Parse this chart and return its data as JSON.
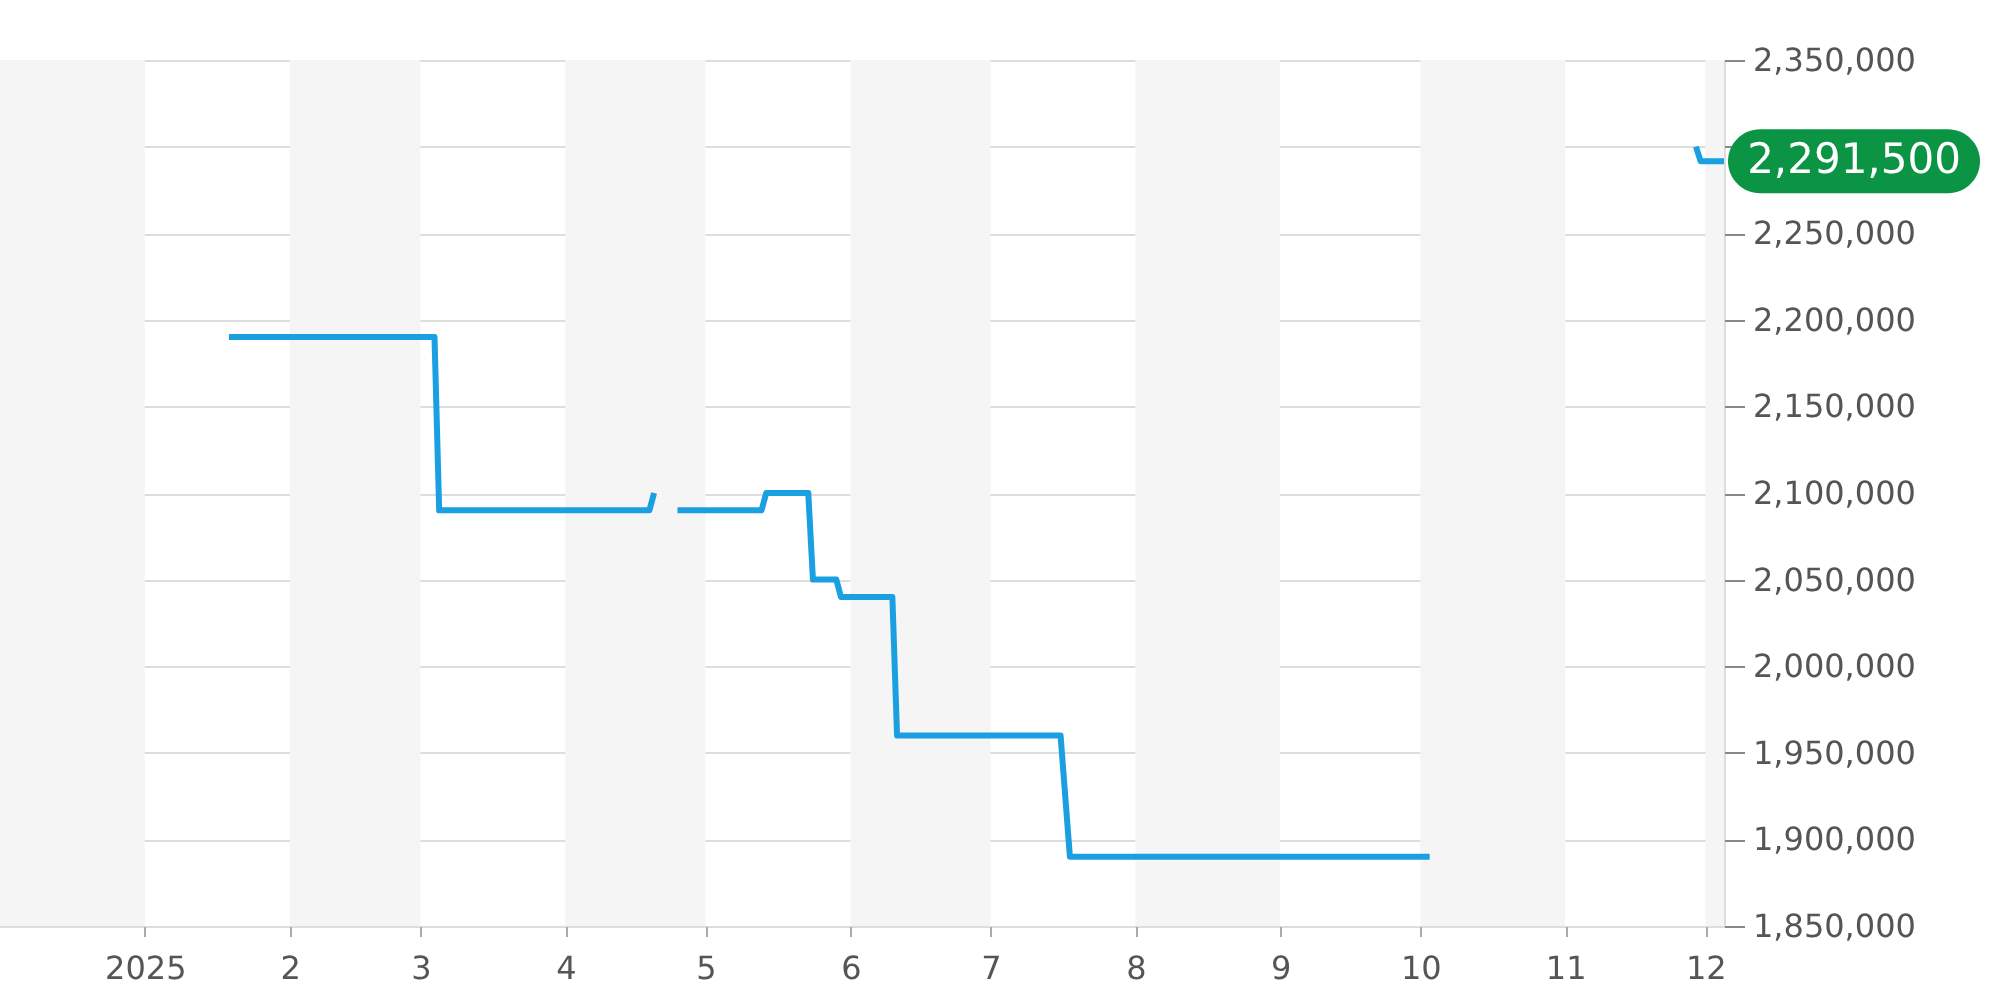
{
  "chart_data": {
    "type": "line",
    "x": [
      "2025-01-19",
      "2025-03-04",
      "2025-03-05",
      "2025-04-19",
      "2025-04-20",
      "2025-04-22",
      "2025-04-25",
      "2025-05-13",
      "2025-05-14",
      "2025-05-23",
      "2025-05-24",
      "2025-05-29",
      "2025-05-30",
      "2025-06-10",
      "2025-06-11",
      "2025-07-16",
      "2025-07-18",
      "2025-10-03",
      "2025-11-15",
      "2025-11-29",
      "2025-11-30",
      "2025-12-05"
    ],
    "series": [
      {
        "color": "#1a9fe0",
        "values": [
          2190000,
          2190000,
          2090000,
          2090000,
          2100000,
          null,
          2090000,
          2090000,
          2100000,
          2100000,
          2050000,
          2050000,
          2040000,
          2040000,
          1960000,
          1960000,
          1890000,
          1890000,
          null,
          2300000,
          2291500,
          2291500
        ]
      }
    ],
    "xlim": [
      "2024-12-01",
      "2025-12-05"
    ],
    "xticks": [
      {
        "value": "2025-01-01",
        "label": "2025"
      },
      {
        "value": "2025-02-01",
        "label": "2"
      },
      {
        "value": "2025-03-01",
        "label": "3"
      },
      {
        "value": "2025-04-01",
        "label": "4"
      },
      {
        "value": "2025-05-01",
        "label": "5"
      },
      {
        "value": "2025-06-01",
        "label": "6"
      },
      {
        "value": "2025-07-01",
        "label": "7"
      },
      {
        "value": "2025-08-01",
        "label": "8"
      },
      {
        "value": "2025-09-01",
        "label": "9"
      },
      {
        "value": "2025-10-01",
        "label": "10"
      },
      {
        "value": "2025-11-01",
        "label": "11"
      },
      {
        "value": "2025-12-01",
        "label": "12"
      }
    ],
    "ylim": [
      1850000,
      2350000
    ],
    "yticks": [
      {
        "value": 1850000,
        "label": "1,850,000"
      },
      {
        "value": 1900000,
        "label": "1,900,000"
      },
      {
        "value": 1950000,
        "label": "1,950,000"
      },
      {
        "value": 2000000,
        "label": "2,000,000"
      },
      {
        "value": 2050000,
        "label": "2,050,000"
      },
      {
        "value": 2100000,
        "label": "2,100,000"
      },
      {
        "value": 2150000,
        "label": "2,150,000"
      },
      {
        "value": 2200000,
        "label": "2,200,000"
      },
      {
        "value": 2250000,
        "label": "2,250,000"
      },
      {
        "value": 2300000,
        "label": null
      },
      {
        "value": 2350000,
        "label": "2,350,000"
      }
    ],
    "bands": [
      {
        "axis": "x",
        "from": "2024-12-01",
        "to": "2025-01-01",
        "color": "#f5f5f5"
      },
      {
        "axis": "x",
        "from": "2025-02-01",
        "to": "2025-03-01",
        "color": "#f5f5f5"
      },
      {
        "axis": "x",
        "from": "2025-04-01",
        "to": "2025-05-01",
        "color": "#f5f5f5"
      },
      {
        "axis": "x",
        "from": "2025-06-01",
        "to": "2025-07-01",
        "color": "#f5f5f5"
      },
      {
        "axis": "x",
        "from": "2025-08-01",
        "to": "2025-09-01",
        "color": "#f5f5f5"
      },
      {
        "axis": "x",
        "from": "2025-10-01",
        "to": "2025-11-01",
        "color": "#f5f5f5"
      },
      {
        "axis": "x",
        "from": "2025-12-01",
        "to": "2025-12-05",
        "color": "#f5f5f5"
      }
    ],
    "annotations": [
      {
        "text": "2,291,500",
        "x": "2025-12-05",
        "y": 2291500
      }
    ],
    "grid": "y",
    "line_style": "solid",
    "marker": "none"
  }
}
